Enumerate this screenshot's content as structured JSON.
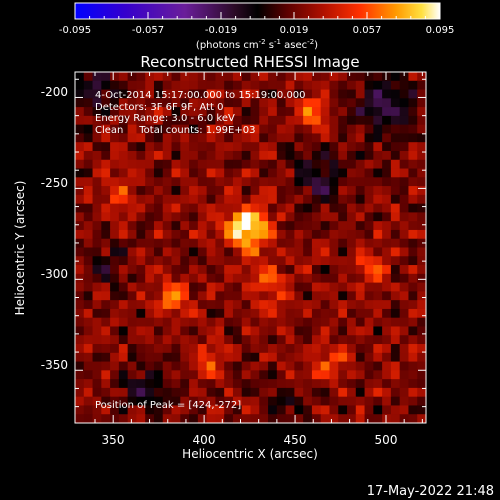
{
  "colorbar": {
    "tick_labels": [
      "-0.095",
      "-0.057",
      "-0.019",
      "0.019",
      "0.057",
      "0.095"
    ],
    "units_text": "(photons cm",
    "units_exp1": "-2",
    "units_mid": " s",
    "units_exp2": "-1",
    "units_tail": " asec",
    "units_exp3": "-2",
    "units_close": ")",
    "stops": [
      {
        "offset": 0.0,
        "color": "#0000ff"
      },
      {
        "offset": 0.14,
        "color": "#3600cc"
      },
      {
        "offset": 0.3,
        "color": "#6a1e9a"
      },
      {
        "offset": 0.44,
        "color": "#2a0a24"
      },
      {
        "offset": 0.5,
        "color": "#000000"
      },
      {
        "offset": 0.58,
        "color": "#5a0000"
      },
      {
        "offset": 0.68,
        "color": "#b01000"
      },
      {
        "offset": 0.78,
        "color": "#ff3000"
      },
      {
        "offset": 0.88,
        "color": "#ff9a00"
      },
      {
        "offset": 0.95,
        "color": "#ffe040"
      },
      {
        "offset": 1.0,
        "color": "#ffffff"
      }
    ]
  },
  "image": {
    "title": "Reconstructed RHESSI Image",
    "info_lines": [
      "4-Oct-2014 15:17:00.000 to 15:19:00.000",
      "Detectors: 3F 6F 9F, Att 0",
      "Energy Range: 3.0 - 6.0 keV",
      "Clean     Total counts: 1.99E+03"
    ],
    "peak_label": "Position of Peak = [424,-272]",
    "x_axis_label": "Heliocentric X (arcsec)",
    "y_axis_label": "Heliocentric Y (arcsec)",
    "x_ticks": [
      "350",
      "400",
      "450",
      "500"
    ],
    "y_ticks": [
      "-200",
      "-250",
      "-300",
      "-350"
    ],
    "peak_x": 424,
    "peak_y": -272
  },
  "footer": {
    "timestamp": "17-May-2022 21:48"
  }
}
